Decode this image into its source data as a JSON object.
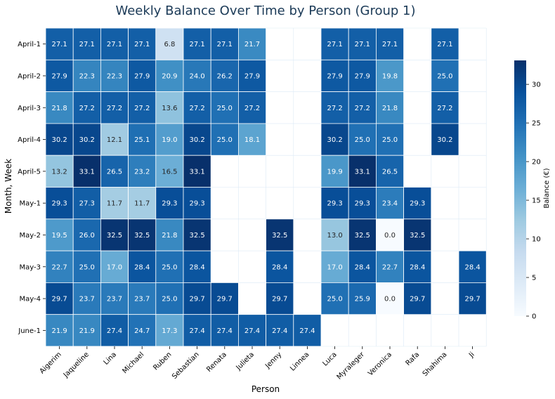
{
  "chart_data": {
    "type": "heatmap",
    "title": "Weekly Balance Over Time by Person (Group 1)",
    "xlabel": "Person",
    "ylabel": "Month, Week",
    "colorbar_label": "Balance (€)",
    "colorbar_ticks": [
      "0",
      "5",
      "10",
      "15",
      "20",
      "25",
      "30"
    ],
    "color_range": [
      0,
      33.1
    ],
    "colormap": "Blues",
    "x_categories": [
      "Aigerim",
      "Jaqueline",
      "Lina",
      "Michael",
      "Ruben",
      "Sebastian",
      "Renata",
      "Julieta",
      "Jenny",
      "Linnea",
      "Luca",
      "Myraleger",
      "Veronica",
      "Rafa",
      "Shahima",
      "Ji"
    ],
    "y_categories": [
      "April-1",
      "April-2",
      "April-3",
      "April-4",
      "April-5",
      "May-1",
      "May-2",
      "May-3",
      "May-4",
      "June-1"
    ],
    "values": [
      [
        27.1,
        27.1,
        27.1,
        27.1,
        6.8,
        27.1,
        27.1,
        21.7,
        null,
        null,
        27.1,
        27.1,
        27.1,
        null,
        27.1,
        null
      ],
      [
        27.9,
        22.3,
        22.3,
        27.9,
        20.9,
        24.0,
        26.2,
        27.9,
        null,
        null,
        27.9,
        27.9,
        19.8,
        null,
        25.0,
        null
      ],
      [
        21.8,
        27.2,
        27.2,
        27.2,
        13.6,
        27.2,
        25.0,
        27.2,
        null,
        null,
        27.2,
        27.2,
        21.8,
        null,
        27.2,
        null
      ],
      [
        30.2,
        30.2,
        12.1,
        25.1,
        19.0,
        30.2,
        25.0,
        18.1,
        null,
        null,
        30.2,
        25.0,
        25.0,
        null,
        30.2,
        null
      ],
      [
        13.2,
        33.1,
        26.5,
        23.2,
        16.5,
        33.1,
        null,
        null,
        null,
        null,
        19.9,
        33.1,
        26.5,
        null,
        null,
        null
      ],
      [
        29.3,
        27.3,
        11.7,
        11.7,
        29.3,
        29.3,
        null,
        null,
        null,
        null,
        29.3,
        29.3,
        23.4,
        29.3,
        null,
        null
      ],
      [
        19.5,
        26.0,
        32.5,
        32.5,
        21.8,
        32.5,
        null,
        null,
        32.5,
        null,
        13.0,
        32.5,
        0.0,
        32.5,
        null,
        null
      ],
      [
        22.7,
        25.0,
        17.0,
        28.4,
        25.0,
        28.4,
        null,
        null,
        28.4,
        null,
        17.0,
        28.4,
        22.7,
        28.4,
        null,
        28.4
      ],
      [
        29.7,
        23.7,
        23.7,
        23.7,
        25.0,
        29.7,
        29.7,
        null,
        29.7,
        null,
        25.0,
        25.9,
        0.0,
        29.7,
        null,
        29.7
      ],
      [
        21.9,
        21.9,
        27.4,
        24.7,
        17.3,
        27.4,
        27.4,
        27.4,
        27.4,
        27.4,
        null,
        null,
        null,
        null,
        null,
        null
      ]
    ]
  }
}
